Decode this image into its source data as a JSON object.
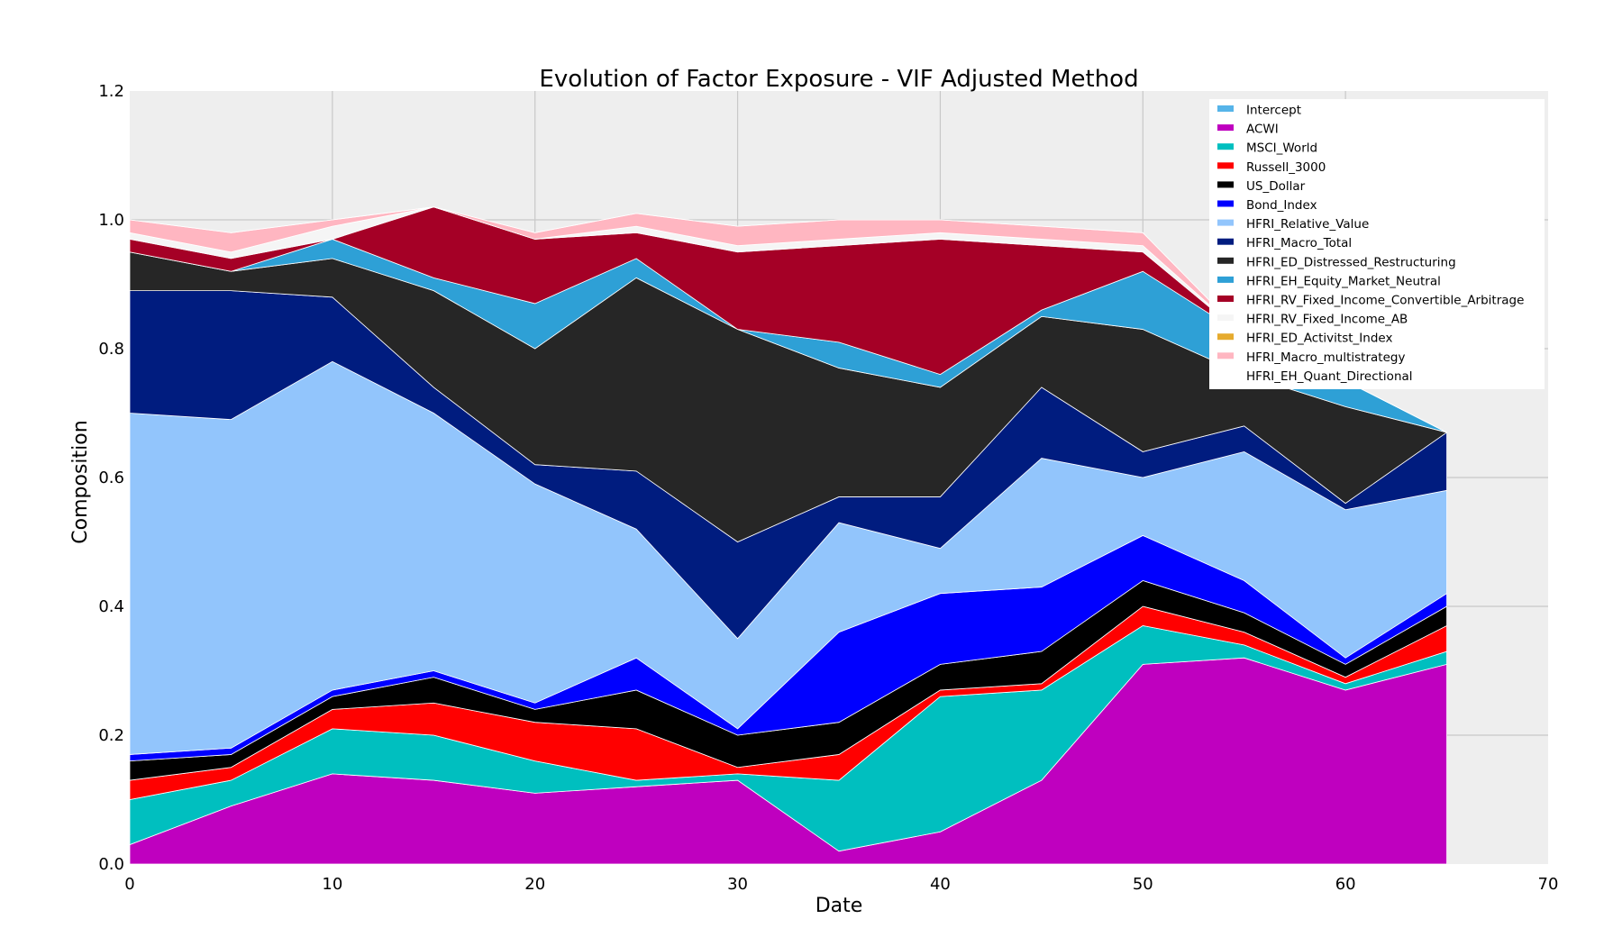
{
  "chart_data": {
    "type": "area",
    "stacked": true,
    "title": "Evolution of Factor Exposure - VIF Adjusted Method",
    "xlabel": "Date",
    "ylabel": "Composition",
    "xlim": [
      0,
      70
    ],
    "ylim": [
      0,
      1.2
    ],
    "xticks": [
      0,
      10,
      20,
      30,
      40,
      50,
      60,
      70
    ],
    "yticks": [
      0.0,
      0.2,
      0.4,
      0.6,
      0.8,
      1.0,
      1.2
    ],
    "xtick_labels": [
      "0",
      "10",
      "20",
      "30",
      "40",
      "50",
      "60",
      "70"
    ],
    "ytick_labels": [
      "0.0",
      "0.2",
      "0.4",
      "0.6",
      "0.8",
      "1.0",
      "1.2"
    ],
    "grid": true,
    "background": "#eeeeee",
    "legend_position": "top-right",
    "x": [
      0,
      5,
      10,
      15,
      20,
      25,
      30,
      35,
      40,
      45,
      50,
      55,
      60,
      65
    ],
    "series": [
      {
        "name": "Intercept",
        "color": "#56b4e9",
        "values": [
          0,
          0,
          0,
          0,
          0,
          0,
          0,
          0,
          0,
          0,
          0,
          0,
          0,
          0
        ]
      },
      {
        "name": "ACWI",
        "color": "#bf00bf",
        "values": [
          0.03,
          0.09,
          0.14,
          0.13,
          0.11,
          0.12,
          0.13,
          0.02,
          0.05,
          0.13,
          0.31,
          0.32,
          0.27,
          0.31
        ]
      },
      {
        "name": "MSCI_World",
        "color": "#00bfbf",
        "values": [
          0.07,
          0.04,
          0.07,
          0.07,
          0.05,
          0.01,
          0.01,
          0.11,
          0.21,
          0.14,
          0.06,
          0.02,
          0.01,
          0.02
        ]
      },
      {
        "name": "Russell_3000",
        "color": "#ff0000",
        "values": [
          0.03,
          0.02,
          0.03,
          0.05,
          0.06,
          0.08,
          0.01,
          0.04,
          0.01,
          0.01,
          0.03,
          0.02,
          0.01,
          0.04
        ]
      },
      {
        "name": "US_Dollar",
        "color": "#000000",
        "values": [
          0.03,
          0.02,
          0.02,
          0.04,
          0.02,
          0.06,
          0.05,
          0.05,
          0.04,
          0.05,
          0.04,
          0.03,
          0.02,
          0.03
        ]
      },
      {
        "name": "Bond_Index",
        "color": "#0000ff",
        "values": [
          0.01,
          0.01,
          0.01,
          0.01,
          0.01,
          0.05,
          0.01,
          0.14,
          0.11,
          0.1,
          0.07,
          0.05,
          0.01,
          0.02
        ]
      },
      {
        "name": "HFRI_Relative_Value",
        "color": "#92c5fc",
        "values": [
          0.53,
          0.51,
          0.51,
          0.4,
          0.34,
          0.2,
          0.14,
          0.17,
          0.07,
          0.2,
          0.09,
          0.2,
          0.23,
          0.16
        ]
      },
      {
        "name": "HFRI_Macro_Total",
        "color": "#001c7f",
        "values": [
          0.19,
          0.2,
          0.1,
          0.04,
          0.03,
          0.09,
          0.15,
          0.04,
          0.08,
          0.11,
          0.04,
          0.04,
          0.01,
          0.09
        ]
      },
      {
        "name": "HFRI_ED_Distressed_Restructuring",
        "color": "#262626",
        "values": [
          0.06,
          0.03,
          0.06,
          0.15,
          0.18,
          0.3,
          0.33,
          0.2,
          0.17,
          0.11,
          0.19,
          0.08,
          0.15,
          0.0
        ]
      },
      {
        "name": "HFRI_EH_Equity_Market_Neutral",
        "color": "#2ea0d6",
        "values": [
          0.0,
          0.0,
          0.03,
          0.02,
          0.07,
          0.03,
          0.0,
          0.04,
          0.02,
          0.01,
          0.09,
          0.06,
          0.04,
          0.0
        ]
      },
      {
        "name": "HFRI_RV_Fixed_Income_Convertible_Arbitrage",
        "color": "#a50026",
        "values": [
          0.02,
          0.02,
          0.0,
          0.11,
          0.1,
          0.04,
          0.12,
          0.15,
          0.21,
          0.1,
          0.03,
          0.0,
          0.0,
          0.0
        ]
      },
      {
        "name": "HFRI_RV_Fixed_Income_AB",
        "color": "#f5f5f5",
        "values": [
          0.01,
          0.01,
          0.02,
          0.0,
          0.0,
          0.01,
          0.01,
          0.01,
          0.01,
          0.01,
          0.01,
          0.0,
          0.0,
          0.0
        ]
      },
      {
        "name": "HFRI_ED_Activitst_Index",
        "color": "#e6ab2e",
        "values": [
          0,
          0,
          0,
          0,
          0,
          0,
          0,
          0,
          0,
          0,
          0,
          0,
          0,
          0
        ]
      },
      {
        "name": "HFRI_Macro_multistrategy",
        "color": "#ffb6c1",
        "values": [
          0.02,
          0.03,
          0.01,
          0.0,
          0.01,
          0.02,
          0.03,
          0.03,
          0.02,
          0.02,
          0.02,
          0.0,
          0.0,
          0.0
        ]
      },
      {
        "name": "HFRI_EH_Quant_Directional",
        "color": "#ffffff",
        "values": [
          0,
          0,
          0,
          0,
          0,
          0,
          0,
          0,
          0,
          0,
          0,
          0,
          0,
          0
        ]
      }
    ]
  }
}
